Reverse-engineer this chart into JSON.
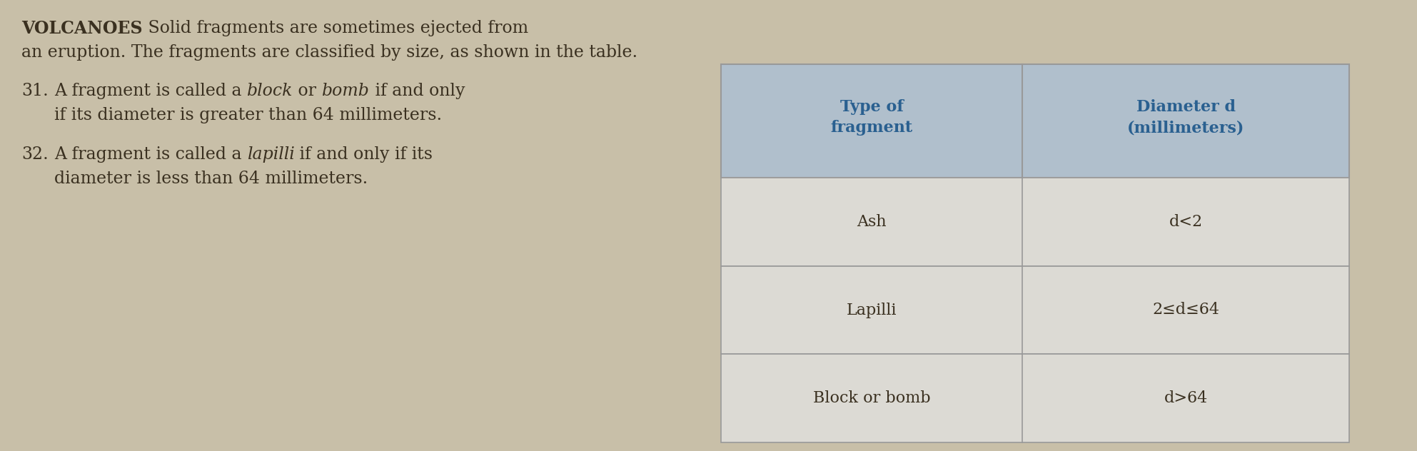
{
  "background_color": "#c8bfa8",
  "header_bg": "#b0bfcc",
  "header_text_color": "#2a6090",
  "cell_bg": "#dcdad4",
  "border_color": "#999999",
  "text_color": "#3a3020",
  "bold_label": "VOLCANOES",
  "intro_line1": " Solid fragments are sometimes ejected from",
  "intro_line2": "an eruption. The fragments are classified by size, as shown in the table.",
  "q31_num": "31.",
  "q31_a": "A fragment is called a ",
  "q31_b": "block",
  "q31_c": " or ",
  "q31_d": "bomb",
  "q31_e": " if and only",
  "q31_f": "if its diameter is greater than 64 millimeters.",
  "q32_num": "32.",
  "q32_a": "A fragment is called a ",
  "q32_b": "lapilli",
  "q32_c": " if and only if its",
  "q32_d": "diameter is less than 64 millimeters.",
  "col1_header": "Type of\nfragment",
  "col2_header": "Diameter d\n(millimeters)",
  "rows": [
    [
      "Ash",
      "d<2"
    ],
    [
      "Lapilli",
      "2≤d≤64"
    ],
    [
      "Block or bomb",
      "d>64"
    ]
  ],
  "fontsize_intro": 17,
  "fontsize_body": 17,
  "fontsize_table_hdr": 16,
  "fontsize_table_cell": 16
}
